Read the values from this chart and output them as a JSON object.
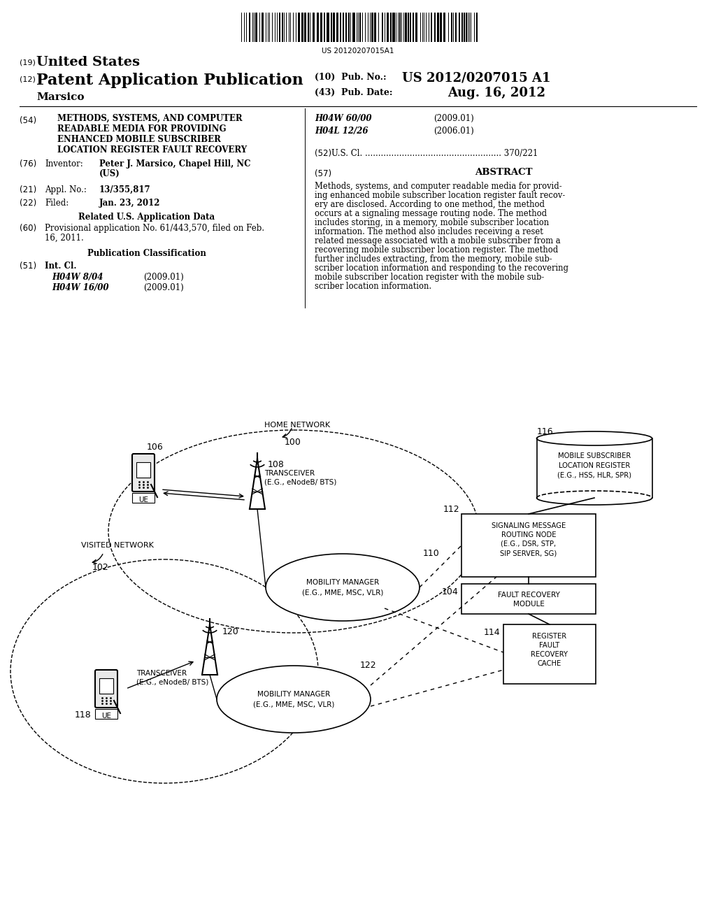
{
  "bg_color": "#ffffff",
  "barcode_text": "US 20120207015A1",
  "header": {
    "line1_num": "(19)",
    "line1_text": "United States",
    "line2_num": "(12)",
    "line2_text": "Patent Application Publication",
    "pub_num_label": "(10)",
    "pub_num_text": "Pub. No.: US 2012/0207015 A1",
    "pub_date_label": "(43)",
    "pub_date_text": "Pub. Date:",
    "pub_date_val": "Aug. 16, 2012",
    "inventor_name": "Marsico"
  },
  "left_col": {
    "title_num": "(54)",
    "title_lines": [
      "METHODS, SYSTEMS, AND COMPUTER",
      "READABLE MEDIA FOR PROVIDING",
      "ENHANCED MOBILE SUBSCRIBER",
      "LOCATION REGISTER FAULT RECOVERY"
    ],
    "inventor_num": "(76)",
    "inventor_label": "Inventor:",
    "inventor_val_line1": "Peter J. Marsico, Chapel Hill, NC",
    "inventor_val_line2": "(US)",
    "appl_num": "(21)",
    "appl_label": "Appl. No.:",
    "appl_val": "13/355,817",
    "filed_num": "(22)",
    "filed_label": "Filed:",
    "filed_val": "Jan. 23, 2012",
    "related_header": "Related U.S. Application Data",
    "related_num": "(60)",
    "related_line1": "Provisional application No. 61/443,570, filed on Feb.",
    "related_line2": "16, 2011.",
    "pub_class_header": "Publication Classification",
    "intcl_num": "(51)",
    "intcl_label": "Int. Cl.",
    "intcl_lines": [
      [
        "H04W 8/04",
        "(2009.01)"
      ],
      [
        "H04W 16/00",
        "(2009.01)"
      ]
    ]
  },
  "right_col": {
    "class_lines": [
      [
        "H04W 60/00",
        "(2009.01)"
      ],
      [
        "H04L 12/26",
        "(2006.01)"
      ]
    ],
    "us_cl_num": "(52)",
    "us_cl_text": "U.S. Cl. .................................................... 370/221",
    "abstract_num": "(57)",
    "abstract_header": "ABSTRACT",
    "abstract_lines": [
      "Methods, systems, and computer readable media for provid-",
      "ing enhanced mobile subscriber location register fault recov-",
      "ery are disclosed. According to one method, the method",
      "occurs at a signaling message routing node. The method",
      "includes storing, in a memory, mobile subscriber location",
      "information. The method also includes receiving a reset",
      "related message associated with a mobile subscriber from a",
      "recovering mobile subscriber location register. The method",
      "further includes extracting, from the memory, mobile sub-",
      "scriber location information and responding to the recovering",
      "mobile subscriber location register with the mobile sub-",
      "scriber location information."
    ]
  }
}
